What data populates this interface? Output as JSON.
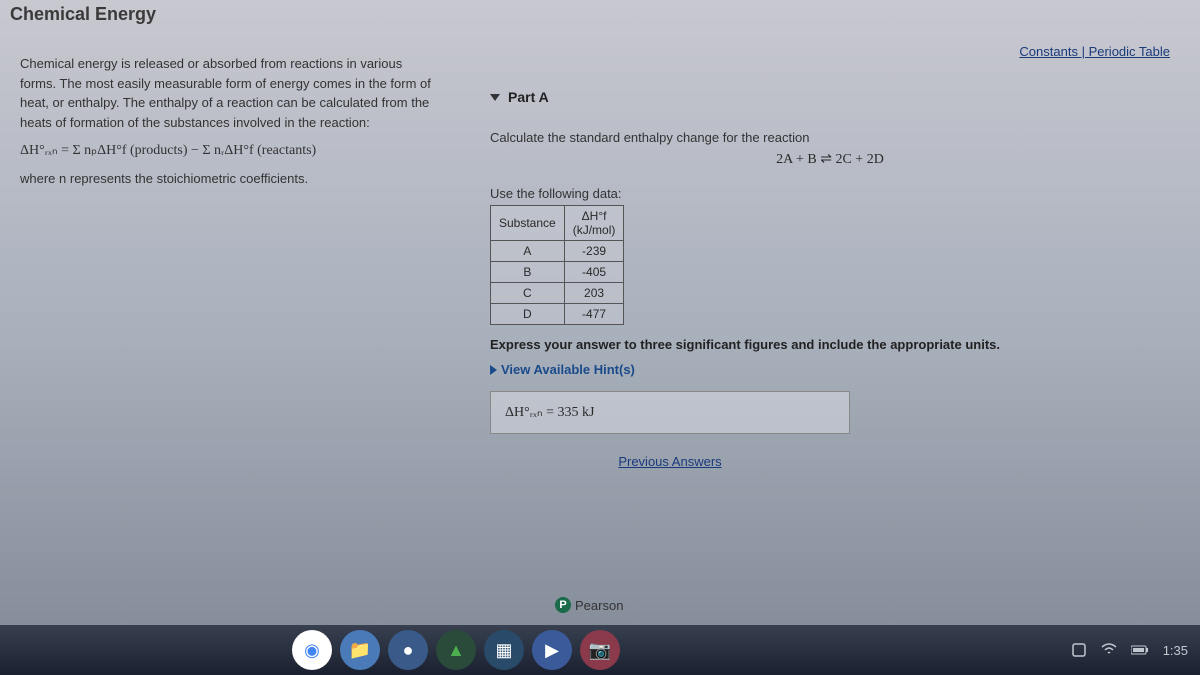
{
  "page_title": "Chemical Energy",
  "top_links": {
    "constants": "Constants",
    "separator": " | ",
    "periodic": "Periodic Table"
  },
  "intro": {
    "p1": "Chemical energy is released or absorbed from reactions in various forms. The most easily measurable form of energy comes in the form of heat, or enthalpy. The enthalpy of a reaction can be calculated from the heats of formation of the substances involved in the reaction:",
    "formula": "ΔH°ᵣₓₙ = Σ nₚΔH°f (products) − Σ nᵣΔH°f (reactants)",
    "p2": "where n represents the stoichiometric coefficients."
  },
  "part": {
    "label": "Part A",
    "instruction": "Calculate the standard enthalpy change for the reaction",
    "equation": "2A + B ⇌ 2C + 2D",
    "use_data": "Use the following data:",
    "table": {
      "headers": [
        "Substance",
        "ΔH°f\n(kJ/mol)"
      ],
      "rows": [
        [
          "A",
          "-239"
        ],
        [
          "B",
          "-405"
        ],
        [
          "C",
          "203"
        ],
        [
          "D",
          "-477"
        ]
      ]
    },
    "express": "Express your answer to three significant figures and include the appropriate units.",
    "hint": "View Available Hint(s)",
    "answer_label": "ΔH°ᵣₓₙ =",
    "answer_value": "335 kJ",
    "prev_answers": "Previous Answers"
  },
  "branding": {
    "name": "Pearson",
    "logo_letter": "P"
  },
  "taskbar": {
    "icons": [
      {
        "name": "chrome",
        "bg": "#ffffff",
        "glyph": "◉",
        "color": "#4285f4"
      },
      {
        "name": "files",
        "bg": "#4a7ab8",
        "glyph": "📁",
        "color": "#ffffff"
      },
      {
        "name": "app1",
        "bg": "#3a5a8a",
        "glyph": "●",
        "color": "#ffffff"
      },
      {
        "name": "drive",
        "bg": "#2a4a3a",
        "glyph": "▲",
        "color": "#4caf50"
      },
      {
        "name": "app2",
        "bg": "#2a4a6a",
        "glyph": "▦",
        "color": "#ffffff"
      },
      {
        "name": "video",
        "bg": "#3a5a9a",
        "glyph": "▶",
        "color": "#ffffff"
      },
      {
        "name": "camera",
        "bg": "#8a3a4a",
        "glyph": "📷",
        "color": "#ffffff"
      }
    ],
    "time": "1:35"
  }
}
